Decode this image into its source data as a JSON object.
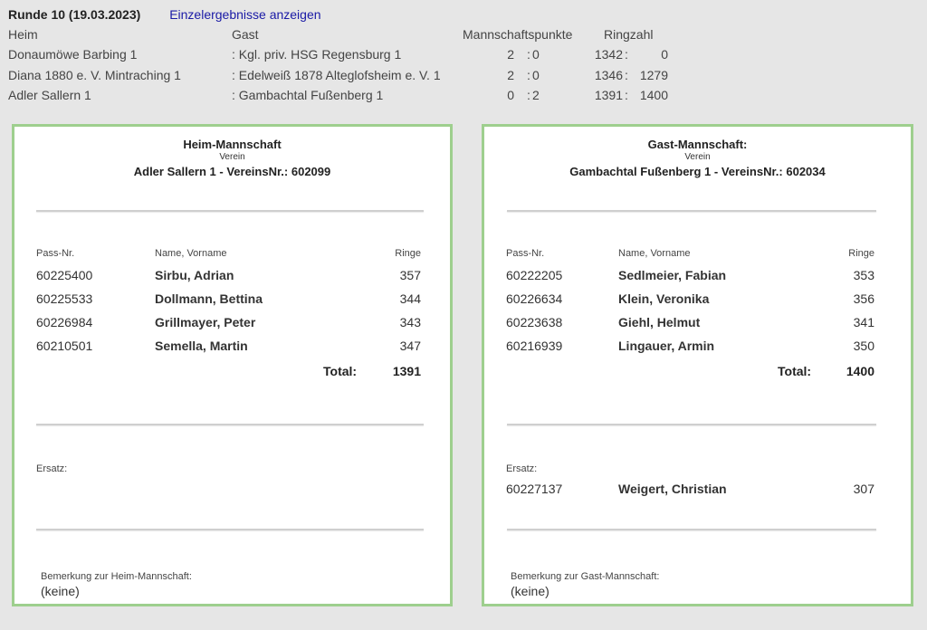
{
  "round": {
    "title": "Runde 10  (19.03.2023)",
    "link": "Einzelergebnisse anzeigen"
  },
  "results": {
    "headers": {
      "home": "Heim",
      "guest": "Gast",
      "team_points": "Mannschaftspunkte",
      "rings": "Ringzahl"
    },
    "rows": [
      {
        "home": "Donaumöwe Barbing 1",
        "guest": ": Kgl. priv. HSG Regensburg 1",
        "mp_home": "2",
        "mp_sep": ":",
        "mp_guest": "0",
        "rz_home": "1342",
        "rz_sep": ":",
        "rz_guest": "0"
      },
      {
        "home": "Diana 1880 e. V. Mintraching 1",
        "guest": ": Edelweiß 1878 Alteglofsheim e. V. 1",
        "mp_home": "2",
        "mp_sep": ":",
        "mp_guest": "0",
        "rz_home": "1346",
        "rz_sep": ":",
        "rz_guest": "1279"
      },
      {
        "home": "Adler Sallern 1",
        "guest": ": Gambachtal Fußenberg 1",
        "mp_home": "0",
        "mp_sep": ":",
        "mp_guest": "2",
        "rz_home": "1391",
        "rz_sep": ":",
        "rz_guest": "1400"
      }
    ]
  },
  "home_team": {
    "title": "Heim-Mannschaft",
    "verein_label": "Verein",
    "club": "Adler Sallern 1  -  VereinsNr.: 602099",
    "col_pass": "Pass-Nr.",
    "col_name": "Name, Vorname",
    "col_rings": "Ringe",
    "players": [
      {
        "pass": "60225400",
        "name": "Sirbu, Adrian",
        "rings": "357"
      },
      {
        "pass": "60225533",
        "name": "Dollmann, Bettina",
        "rings": "344"
      },
      {
        "pass": "60226984",
        "name": "Grillmayer, Peter",
        "rings": "343"
      },
      {
        "pass": "60210501",
        "name": "Semella, Martin",
        "rings": "347"
      }
    ],
    "total_label": "Total:",
    "total": "1391",
    "ersatz_label": "Ersatz:",
    "substitutes": [],
    "remark_label": "Bemerkung zur Heim-Mannschaft:",
    "remark": "(keine)"
  },
  "guest_team": {
    "title": "Gast-Mannschaft:",
    "verein_label": "Verein",
    "club": "Gambachtal Fußenberg 1  -  VereinsNr.: 602034",
    "col_pass": "Pass-Nr.",
    "col_name": "Name, Vorname",
    "col_rings": "Ringe",
    "players": [
      {
        "pass": "60222205",
        "name": "Sedlmeier, Fabian",
        "rings": "353"
      },
      {
        "pass": "60226634",
        "name": "Klein, Veronika",
        "rings": "356"
      },
      {
        "pass": "60223638",
        "name": "Giehl, Helmut",
        "rings": "341"
      },
      {
        "pass": "60216939",
        "name": "Lingauer, Armin",
        "rings": "350"
      }
    ],
    "total_label": "Total:",
    "total": "1400",
    "ersatz_label": "Ersatz:",
    "substitutes": [
      {
        "pass": "60227137",
        "name": "Weigert, Christian",
        "rings": "307"
      }
    ],
    "remark_label": "Bemerkung zur Gast-Mannschaft:",
    "remark": "(keine)"
  }
}
